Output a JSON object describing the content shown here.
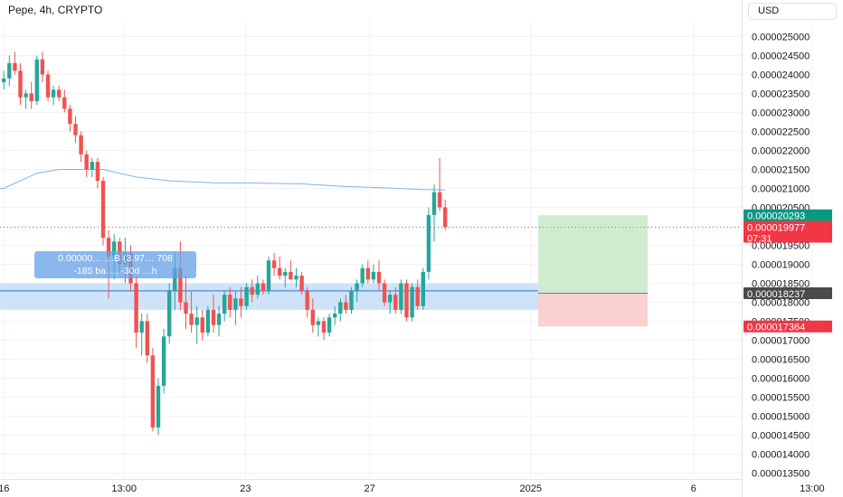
{
  "header": {
    "symbol_title": "Pepe, 4h, CRYPTO",
    "currency": "USD"
  },
  "colors": {
    "up": "#26a69a",
    "down": "#ef5350",
    "ma": "#7fb3e6",
    "tp_zone": "#cfecd1",
    "sl_zone": "#fbd0d0",
    "range_band": "#cfe3f8",
    "range_line": "#2a6fdb"
  },
  "measure_tooltip": {
    "line1": "0.00000… …B (3.97… 708",
    "line2": "-185 ba…, -30d …h"
  },
  "price_labels": {
    "take_profit": "0.000020293",
    "last_price": "0.000019977",
    "countdown": "07:31",
    "entry": "0.000018237",
    "stop_loss": "0.000017364"
  },
  "chart_data": {
    "type": "candlestick",
    "title": "Pepe, 4h, CRYPTO",
    "y_axis": {
      "ylim": [
        1.34e-05,
        2.53e-05
      ],
      "ticks": [
        "0.000025000",
        "0.000024500",
        "0.000024000",
        "0.000023500",
        "0.000023000",
        "0.000022500",
        "0.000022000",
        "0.000021500",
        "0.000021000",
        "0.000020500",
        "0.000020000",
        "0.000019500",
        "0.000019000",
        "0.000018500",
        "0.000018000",
        "0.000017500",
        "0.000017000",
        "0.000016500",
        "0.000016000",
        "0.000015500",
        "0.000015000",
        "0.000014500",
        "0.000014000",
        "0.000013500"
      ],
      "tick_values": [
        2.5e-05,
        2.45e-05,
        2.4e-05,
        2.35e-05,
        2.3e-05,
        2.25e-05,
        2.2e-05,
        2.15e-05,
        2.1e-05,
        2.05e-05,
        2e-05,
        1.95e-05,
        1.9e-05,
        1.85e-05,
        1.8e-05,
        1.75e-05,
        1.7e-05,
        1.65e-05,
        1.6e-05,
        1.55e-05,
        1.5e-05,
        1.45e-05,
        1.4e-05,
        1.35e-05
      ]
    },
    "x_axis": {
      "ticks": [
        {
          "label": "16",
          "index": 0
        },
        {
          "label": "13:00",
          "index": 21.8
        },
        {
          "label": "23",
          "index": 43.8
        },
        {
          "label": "27",
          "index": 66.3
        },
        {
          "label": "2025",
          "index": 95.5
        },
        {
          "label": "6",
          "index": 125
        },
        {
          "label": "13:00",
          "index": 146.5
        }
      ]
    },
    "candles": [
      [
        2.38e-05,
        2.41e-05,
        2.36e-05,
        2.39e-05
      ],
      [
        2.39e-05,
        2.45e-05,
        2.37e-05,
        2.43e-05
      ],
      [
        2.43e-05,
        2.46e-05,
        2.4e-05,
        2.41e-05
      ],
      [
        2.41e-05,
        2.43e-05,
        2.32e-05,
        2.34e-05
      ],
      [
        2.34e-05,
        2.36e-05,
        2.31e-05,
        2.35e-05
      ],
      [
        2.35e-05,
        2.38e-05,
        2.31e-05,
        2.33e-05
      ],
      [
        2.33e-05,
        2.45e-05,
        2.32e-05,
        2.44e-05
      ],
      [
        2.44e-05,
        2.46e-05,
        2.38e-05,
        2.4e-05
      ],
      [
        2.4e-05,
        2.41e-05,
        2.33e-05,
        2.34e-05
      ],
      [
        2.34e-05,
        2.37e-05,
        2.32e-05,
        2.36e-05
      ],
      [
        2.36e-05,
        2.37e-05,
        2.33e-05,
        2.34e-05
      ],
      [
        2.34e-05,
        2.36e-05,
        2.3e-05,
        2.31e-05
      ],
      [
        2.31e-05,
        2.32e-05,
        2.25e-05,
        2.27e-05
      ],
      [
        2.27e-05,
        2.29e-05,
        2.22e-05,
        2.24e-05
      ],
      [
        2.24e-05,
        2.25e-05,
        2.17e-05,
        2.19e-05
      ],
      [
        2.19e-05,
        2.2e-05,
        2.13e-05,
        2.15e-05
      ],
      [
        2.15e-05,
        2.18e-05,
        2.13e-05,
        2.17e-05
      ],
      [
        2.17e-05,
        2.18e-05,
        2.1e-05,
        2.12e-05
      ],
      [
        2.12e-05,
        2.13e-05,
        1.95e-05,
        1.97e-05
      ],
      [
        1.97e-05,
        1.99e-05,
        1.81e-05,
        1.92e-05
      ],
      [
        1.92e-05,
        1.98e-05,
        1.86e-05,
        1.96e-05
      ],
      [
        1.96e-05,
        1.97e-05,
        1.88e-05,
        1.9e-05
      ],
      [
        1.9e-05,
        1.97e-05,
        1.85e-05,
        1.93e-05
      ],
      [
        1.93e-05,
        1.95e-05,
        1.83e-05,
        1.85e-05
      ],
      [
        1.85e-05,
        1.87e-05,
        1.68e-05,
        1.72e-05
      ],
      [
        1.72e-05,
        1.77e-05,
        1.66e-05,
        1.75e-05
      ],
      [
        1.75e-05,
        1.77e-05,
        1.64e-05,
        1.66e-05
      ],
      [
        1.66e-05,
        1.68e-05,
        1.46e-05,
        1.47e-05
      ],
      [
        1.47e-05,
        1.6e-05,
        1.45e-05,
        1.58e-05
      ],
      [
        1.58e-05,
        1.73e-05,
        1.56e-05,
        1.71e-05
      ],
      [
        1.71e-05,
        1.85e-05,
        1.69e-05,
        1.83e-05
      ],
      [
        1.83e-05,
        1.93e-05,
        1.78e-05,
        1.89e-05
      ],
      [
        1.89e-05,
        1.96e-05,
        1.78e-05,
        1.8e-05
      ],
      [
        1.8e-05,
        1.87e-05,
        1.73e-05,
        1.77e-05
      ],
      [
        1.77e-05,
        1.83e-05,
        1.72e-05,
        1.74e-05
      ],
      [
        1.74e-05,
        1.79e-05,
        1.69e-05,
        1.76e-05
      ],
      [
        1.76e-05,
        1.78e-05,
        1.7e-05,
        1.72e-05
      ],
      [
        1.72e-05,
        1.79e-05,
        1.71e-05,
        1.78e-05
      ],
      [
        1.78e-05,
        1.82e-05,
        1.72e-05,
        1.74e-05
      ],
      [
        1.74e-05,
        1.79e-05,
        1.71e-05,
        1.77e-05
      ],
      [
        1.77e-05,
        1.83e-05,
        1.75e-05,
        1.82e-05
      ],
      [
        1.82e-05,
        1.84e-05,
        1.76e-05,
        1.78e-05
      ],
      [
        1.78e-05,
        1.83e-05,
        1.74e-05,
        1.81e-05
      ],
      [
        1.81e-05,
        1.84e-05,
        1.76e-05,
        1.79e-05
      ],
      [
        1.79e-05,
        1.85e-05,
        1.78e-05,
        1.84e-05
      ],
      [
        1.84e-05,
        1.86e-05,
        1.8e-05,
        1.82e-05
      ],
      [
        1.82e-05,
        1.87e-05,
        1.81e-05,
        1.85e-05
      ],
      [
        1.85e-05,
        1.86e-05,
        1.82e-05,
        1.83e-05
      ],
      [
        1.83e-05,
        1.92e-05,
        1.82e-05,
        1.91e-05
      ],
      [
        1.91e-05,
        1.93e-05,
        1.87e-05,
        1.89e-05
      ],
      [
        1.89e-05,
        1.92e-05,
        1.86e-05,
        1.87e-05
      ],
      [
        1.87e-05,
        1.89e-05,
        1.84e-05,
        1.88e-05
      ],
      [
        1.88e-05,
        1.91e-05,
        1.86e-05,
        1.86e-05
      ],
      [
        1.86e-05,
        1.89e-05,
        1.84e-05,
        1.87e-05
      ],
      [
        1.87e-05,
        1.88e-05,
        1.82e-05,
        1.83e-05
      ],
      [
        1.83e-05,
        1.84e-05,
        1.76e-05,
        1.78e-05
      ],
      [
        1.78e-05,
        1.81e-05,
        1.72e-05,
        1.74e-05
      ],
      [
        1.74e-05,
        1.76e-05,
        1.71e-05,
        1.75e-05
      ],
      [
        1.75e-05,
        1.76e-05,
        1.7e-05,
        1.72e-05
      ],
      [
        1.72e-05,
        1.77e-05,
        1.71e-05,
        1.76e-05
      ],
      [
        1.76e-05,
        1.79e-05,
        1.74e-05,
        1.77e-05
      ],
      [
        1.77e-05,
        1.81e-05,
        1.75e-05,
        1.8e-05
      ],
      [
        1.8e-05,
        1.82e-05,
        1.77e-05,
        1.78e-05
      ],
      [
        1.78e-05,
        1.84e-05,
        1.77e-05,
        1.83e-05
      ],
      [
        1.83e-05,
        1.86e-05,
        1.8e-05,
        1.85e-05
      ],
      [
        1.85e-05,
        1.9e-05,
        1.84e-05,
        1.89e-05
      ],
      [
        1.89e-05,
        1.91e-05,
        1.85e-05,
        1.86e-05
      ],
      [
        1.86e-05,
        1.9e-05,
        1.85e-05,
        1.88e-05
      ],
      [
        1.88e-05,
        1.91e-05,
        1.83e-05,
        1.85e-05
      ],
      [
        1.85e-05,
        1.86e-05,
        1.79e-05,
        1.8e-05
      ],
      [
        1.8e-05,
        1.83e-05,
        1.77e-05,
        1.82e-05
      ],
      [
        1.82e-05,
        1.84e-05,
        1.77e-05,
        1.78e-05
      ],
      [
        1.78e-05,
        1.86e-05,
        1.77e-05,
        1.85e-05
      ],
      [
        1.85e-05,
        1.86e-05,
        1.75e-05,
        1.76e-05
      ],
      [
        1.76e-05,
        1.85e-05,
        1.75e-05,
        1.84e-05
      ],
      [
        1.84e-05,
        1.86e-05,
        1.78e-05,
        1.79e-05
      ],
      [
        1.79e-05,
        1.89e-05,
        1.78e-05,
        1.88e-05
      ],
      [
        1.88e-05,
        2.05e-05,
        1.86e-05,
        2.03e-05
      ],
      [
        2.03e-05,
        2.11e-05,
        1.96e-05,
        2.09e-05
      ],
      [
        2.09e-05,
        2.18e-05,
        2.04e-05,
        2.05e-05
      ],
      [
        2.05e-05,
        2.07e-05,
        1.99e-05,
        1.998e-05
      ]
    ],
    "moving_average": {
      "anchor_index": [
        0,
        6,
        10,
        14,
        18,
        24,
        30,
        38,
        46,
        54,
        62,
        70,
        76,
        80
      ],
      "anchor_value": [
        2.1e-05,
        2.14e-05,
        2.15e-05,
        2.15e-05,
        2.15e-05,
        2.13e-05,
        2.12e-05,
        2.115e-05,
        2.114e-05,
        2.112e-05,
        2.105e-05,
        2.101e-05,
        2.097e-05,
        2.096e-05
      ]
    },
    "range_band": {
      "low": 1.78e-05,
      "high": 1.85e-05,
      "start_index": 0,
      "end_index": 102
    },
    "range_line": {
      "value": 1.83e-05,
      "start_index": 0,
      "end_index": 102
    },
    "long_position": {
      "start_index": 102,
      "end_index": 123,
      "entry": 1.8237e-05,
      "take_profit": 2.0293e-05,
      "stop_loss": 1.7364e-05
    },
    "last_price": 1.9977e-05
  }
}
